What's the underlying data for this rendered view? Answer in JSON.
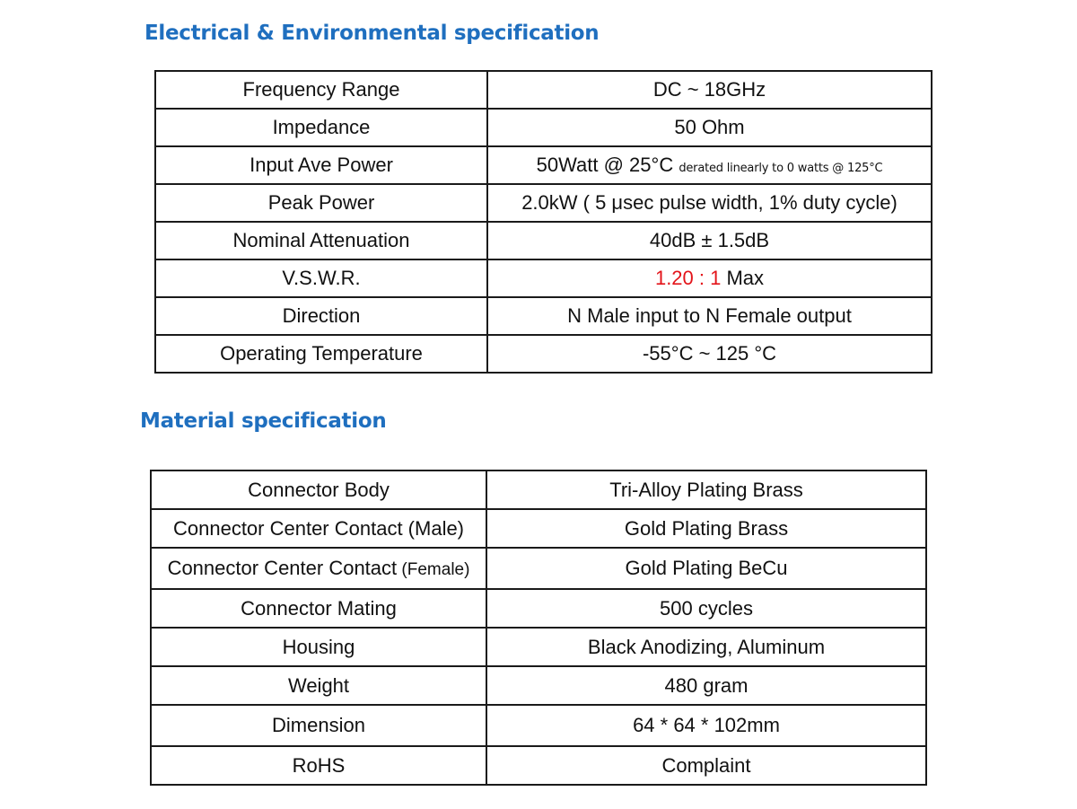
{
  "electrical": {
    "title": "Electrical & Environmental specification",
    "rows": [
      {
        "label": "Frequency Range",
        "value": "DC ~ 18GHz"
      },
      {
        "label": "Impedance",
        "value": "50 Ohm"
      },
      {
        "label": "Input Ave Power",
        "value": "50Watt @ 25°C",
        "note": "derated linearly to 0 watts @ 125°C"
      },
      {
        "label": "Peak Power",
        "value": "2.0kW ( 5 μsec pulse width, 1% duty cycle)"
      },
      {
        "label": "Nominal Attenuation",
        "value": "40dB ± 1.5dB"
      },
      {
        "label": "V.S.W.R.",
        "value_ratio": "1.20 : 1",
        "value_suffix": " Max"
      },
      {
        "label": "Direction",
        "value": "N Male input to N Female output"
      },
      {
        "label": "Operating Temperature",
        "value": "-55°C ~ 125 °C"
      }
    ]
  },
  "material": {
    "title": "Material specification",
    "rows": [
      {
        "label": "Connector Body",
        "value": "Tri-Alloy Plating Brass"
      },
      {
        "label": "Connector Center Contact (Male)",
        "value": "Gold Plating Brass"
      },
      {
        "label": "Connector Center Contact",
        "label_suffix": " (Female)",
        "value": "Gold Plating BeCu"
      },
      {
        "label": "Connector Mating",
        "value": "500 cycles"
      },
      {
        "label": "Housing",
        "value": "Black Anodizing, Aluminum"
      },
      {
        "label": "Weight",
        "value": "480 gram"
      },
      {
        "label": "Dimension",
        "value": "64 * 64 * 102mm"
      },
      {
        "label": "RoHS",
        "value": "Complaint"
      }
    ]
  },
  "colors": {
    "heading": "#1f6fbf",
    "highlight": "#e3141a",
    "border": "#1a1a1a"
  }
}
